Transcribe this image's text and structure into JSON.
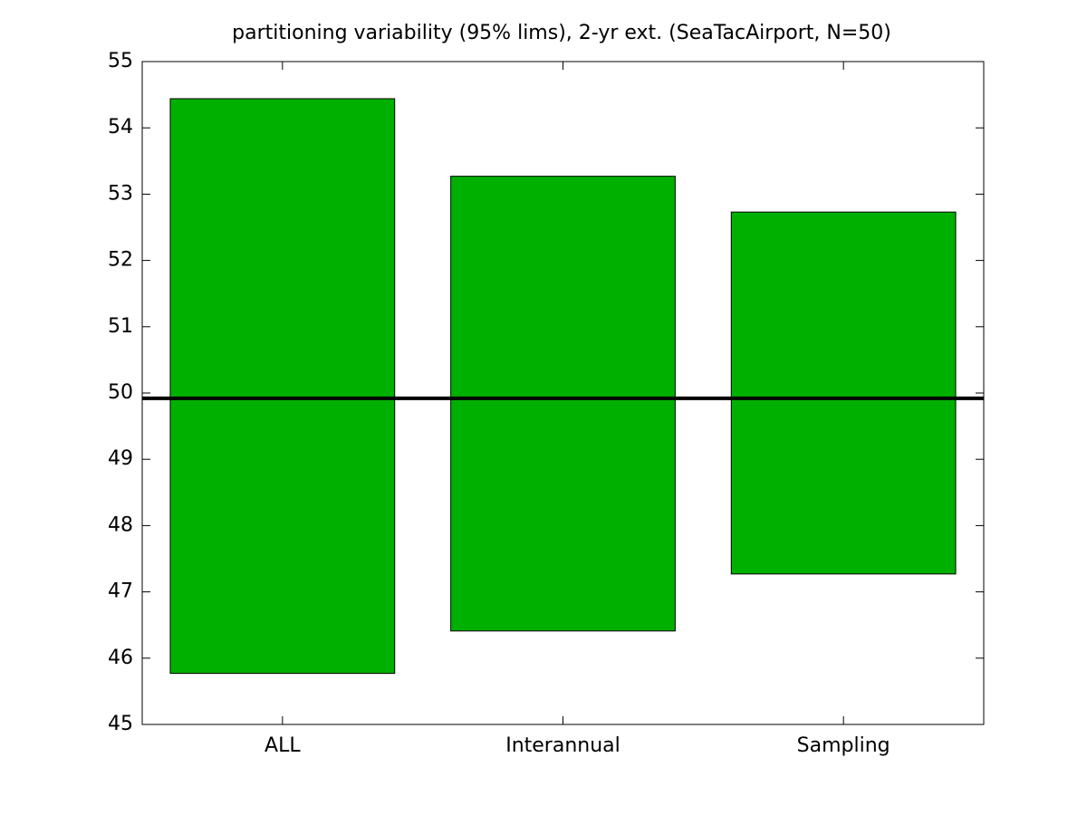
{
  "chart_data": {
    "type": "range_bar",
    "title": "partitioning variability (95% lims), 2-yr ext. (SeaTacAirport, N=50)",
    "categories": [
      "ALL",
      "Interannual",
      "Sampling"
    ],
    "low": [
      45.77,
      46.41,
      47.27
    ],
    "high": [
      54.44,
      53.27,
      52.73
    ],
    "color": "#00b000",
    "reference_line": 49.92,
    "ylim": [
      45,
      55
    ],
    "yticks": [
      45,
      46,
      47,
      48,
      49,
      50,
      51,
      52,
      53,
      54,
      55
    ],
    "grid": false
  }
}
